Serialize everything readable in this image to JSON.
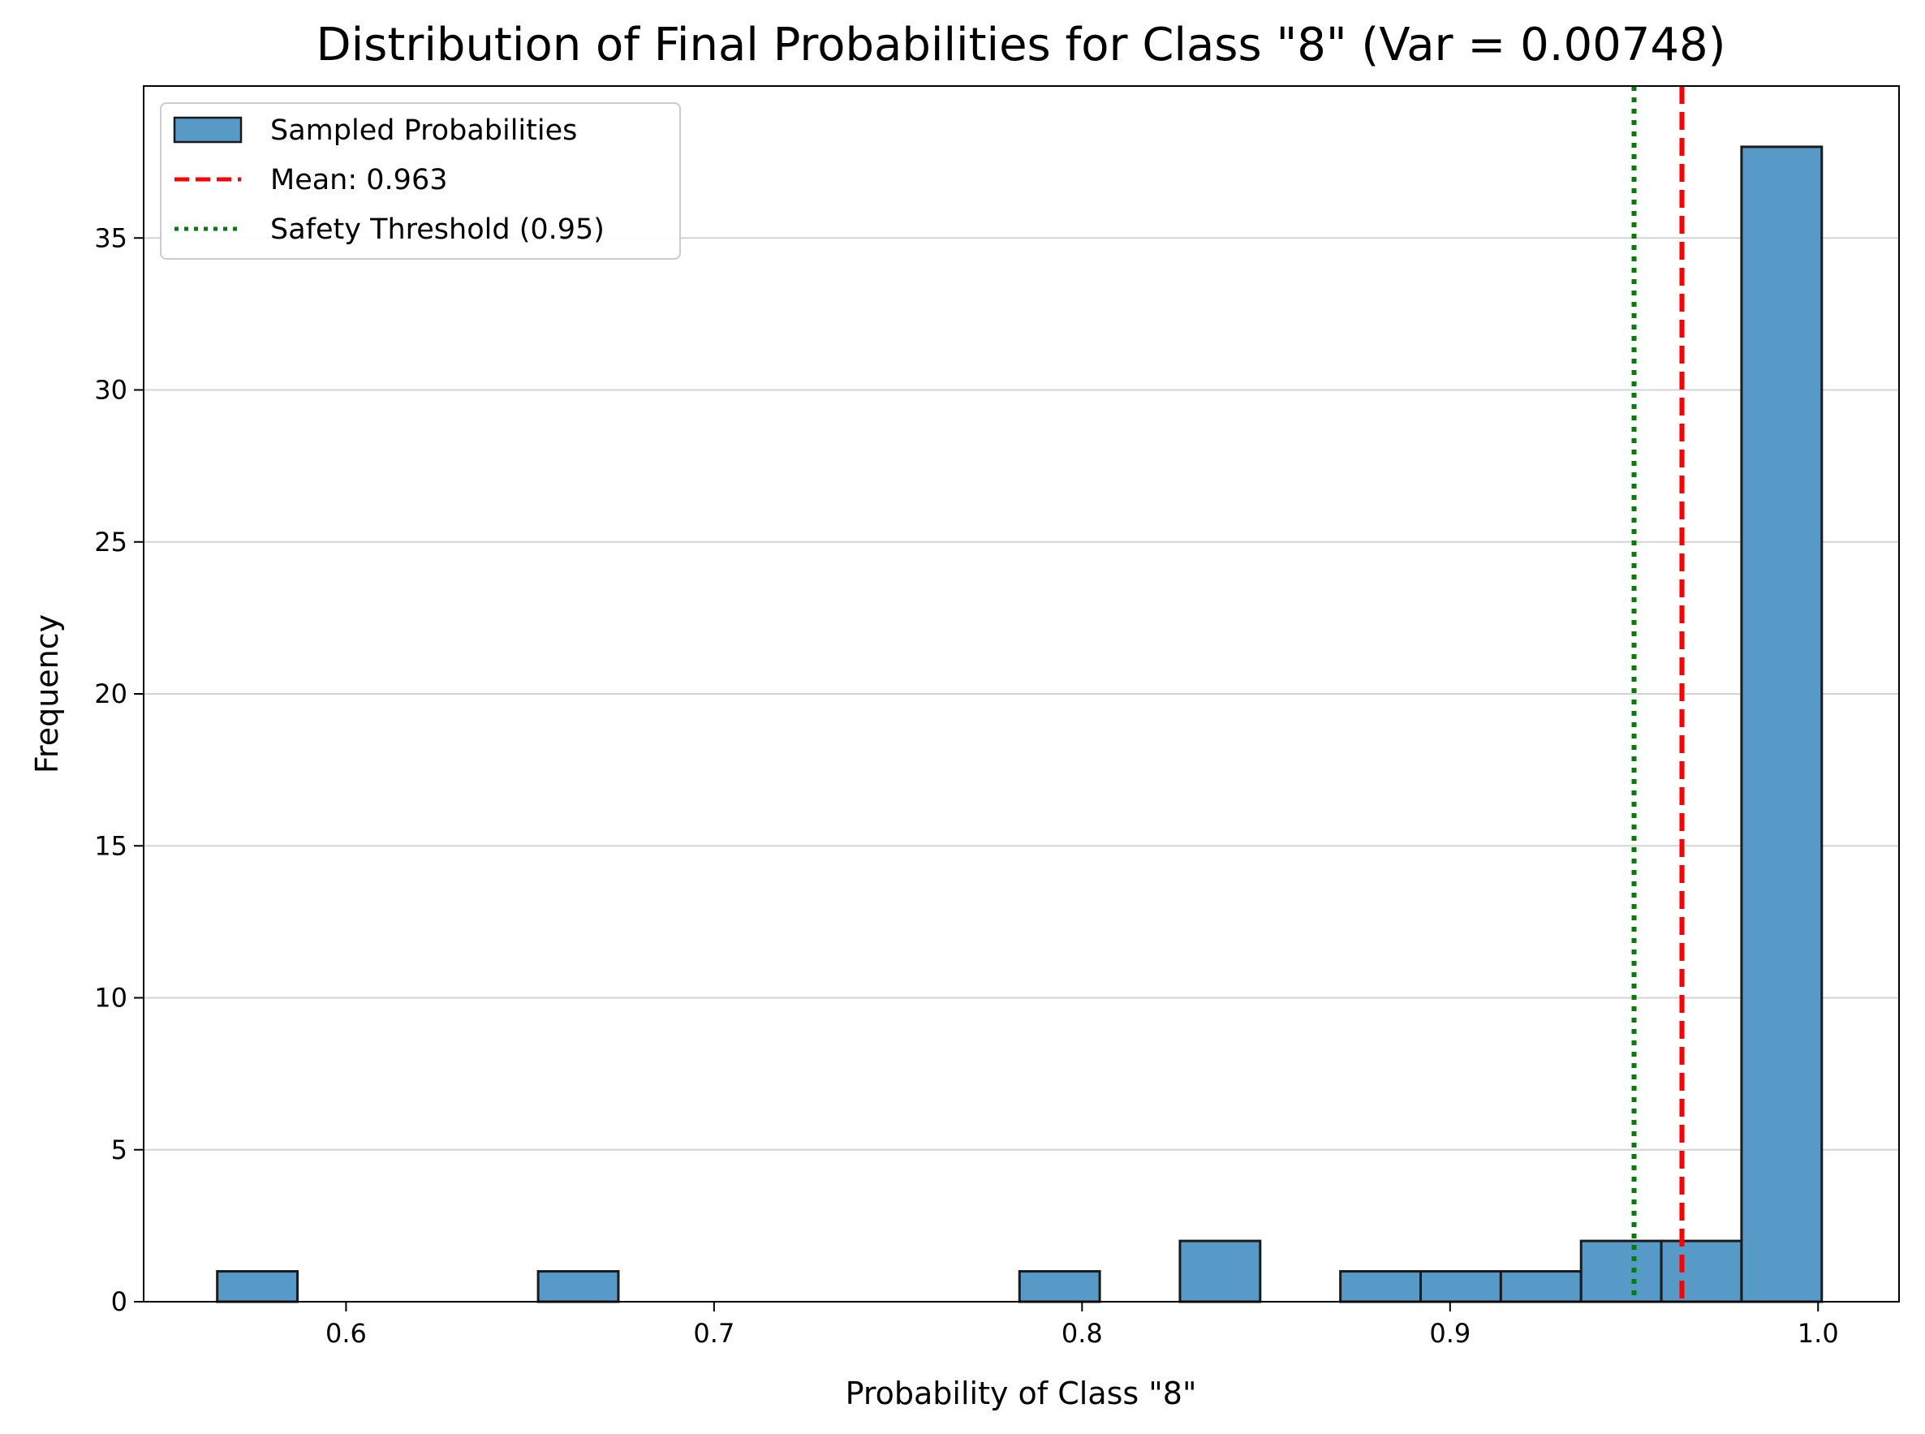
{
  "chart_data": {
    "type": "bar",
    "title": "Distribution of Final Probabilities for Class \"8\" (Var = 0.00748)",
    "xlabel": "Probability of Class \"8\"",
    "ylabel": "Frequency",
    "xlim": [
      0.545,
      1.022
    ],
    "ylim": [
      0,
      40
    ],
    "xticks": [
      0.6,
      0.7,
      0.8,
      0.9,
      1.0
    ],
    "xtick_labels": [
      "0.6",
      "0.7",
      "0.8",
      "0.9",
      "1.0"
    ],
    "yticks": [
      0,
      5,
      10,
      15,
      20,
      25,
      30,
      35
    ],
    "ytick_labels": [
      "0",
      "5",
      "10",
      "15",
      "20",
      "25",
      "30",
      "35"
    ],
    "grid": "y-axis",
    "bin_edges": [
      0.565,
      0.5868,
      0.6086,
      0.6304,
      0.6522,
      0.674,
      0.6958,
      0.7176,
      0.7394,
      0.7612,
      0.783,
      0.8048,
      0.8266,
      0.8484,
      0.8702,
      0.892,
      0.9138,
      0.9356,
      0.9574,
      0.9792,
      1.001
    ],
    "counts": [
      1,
      0,
      0,
      0,
      1,
      0,
      0,
      0,
      0,
      0,
      1,
      0,
      2,
      0,
      1,
      1,
      1,
      2,
      2,
      38
    ],
    "bar_color": "#5799c7",
    "bar_edge_color": "#1a1a1a",
    "mean_line": {
      "value": 0.963,
      "color": "#ff0000",
      "style": "dashed"
    },
    "threshold_line": {
      "value": 0.95,
      "color": "#008000",
      "style": "dotted"
    },
    "legend": {
      "position": "top-left",
      "entries": [
        {
          "label": "Sampled Probabilities",
          "kind": "patch"
        },
        {
          "label": "Mean: 0.963",
          "kind": "dashed-line"
        },
        {
          "label": "Safety Threshold (0.95)",
          "kind": "dotted-line"
        }
      ]
    }
  }
}
